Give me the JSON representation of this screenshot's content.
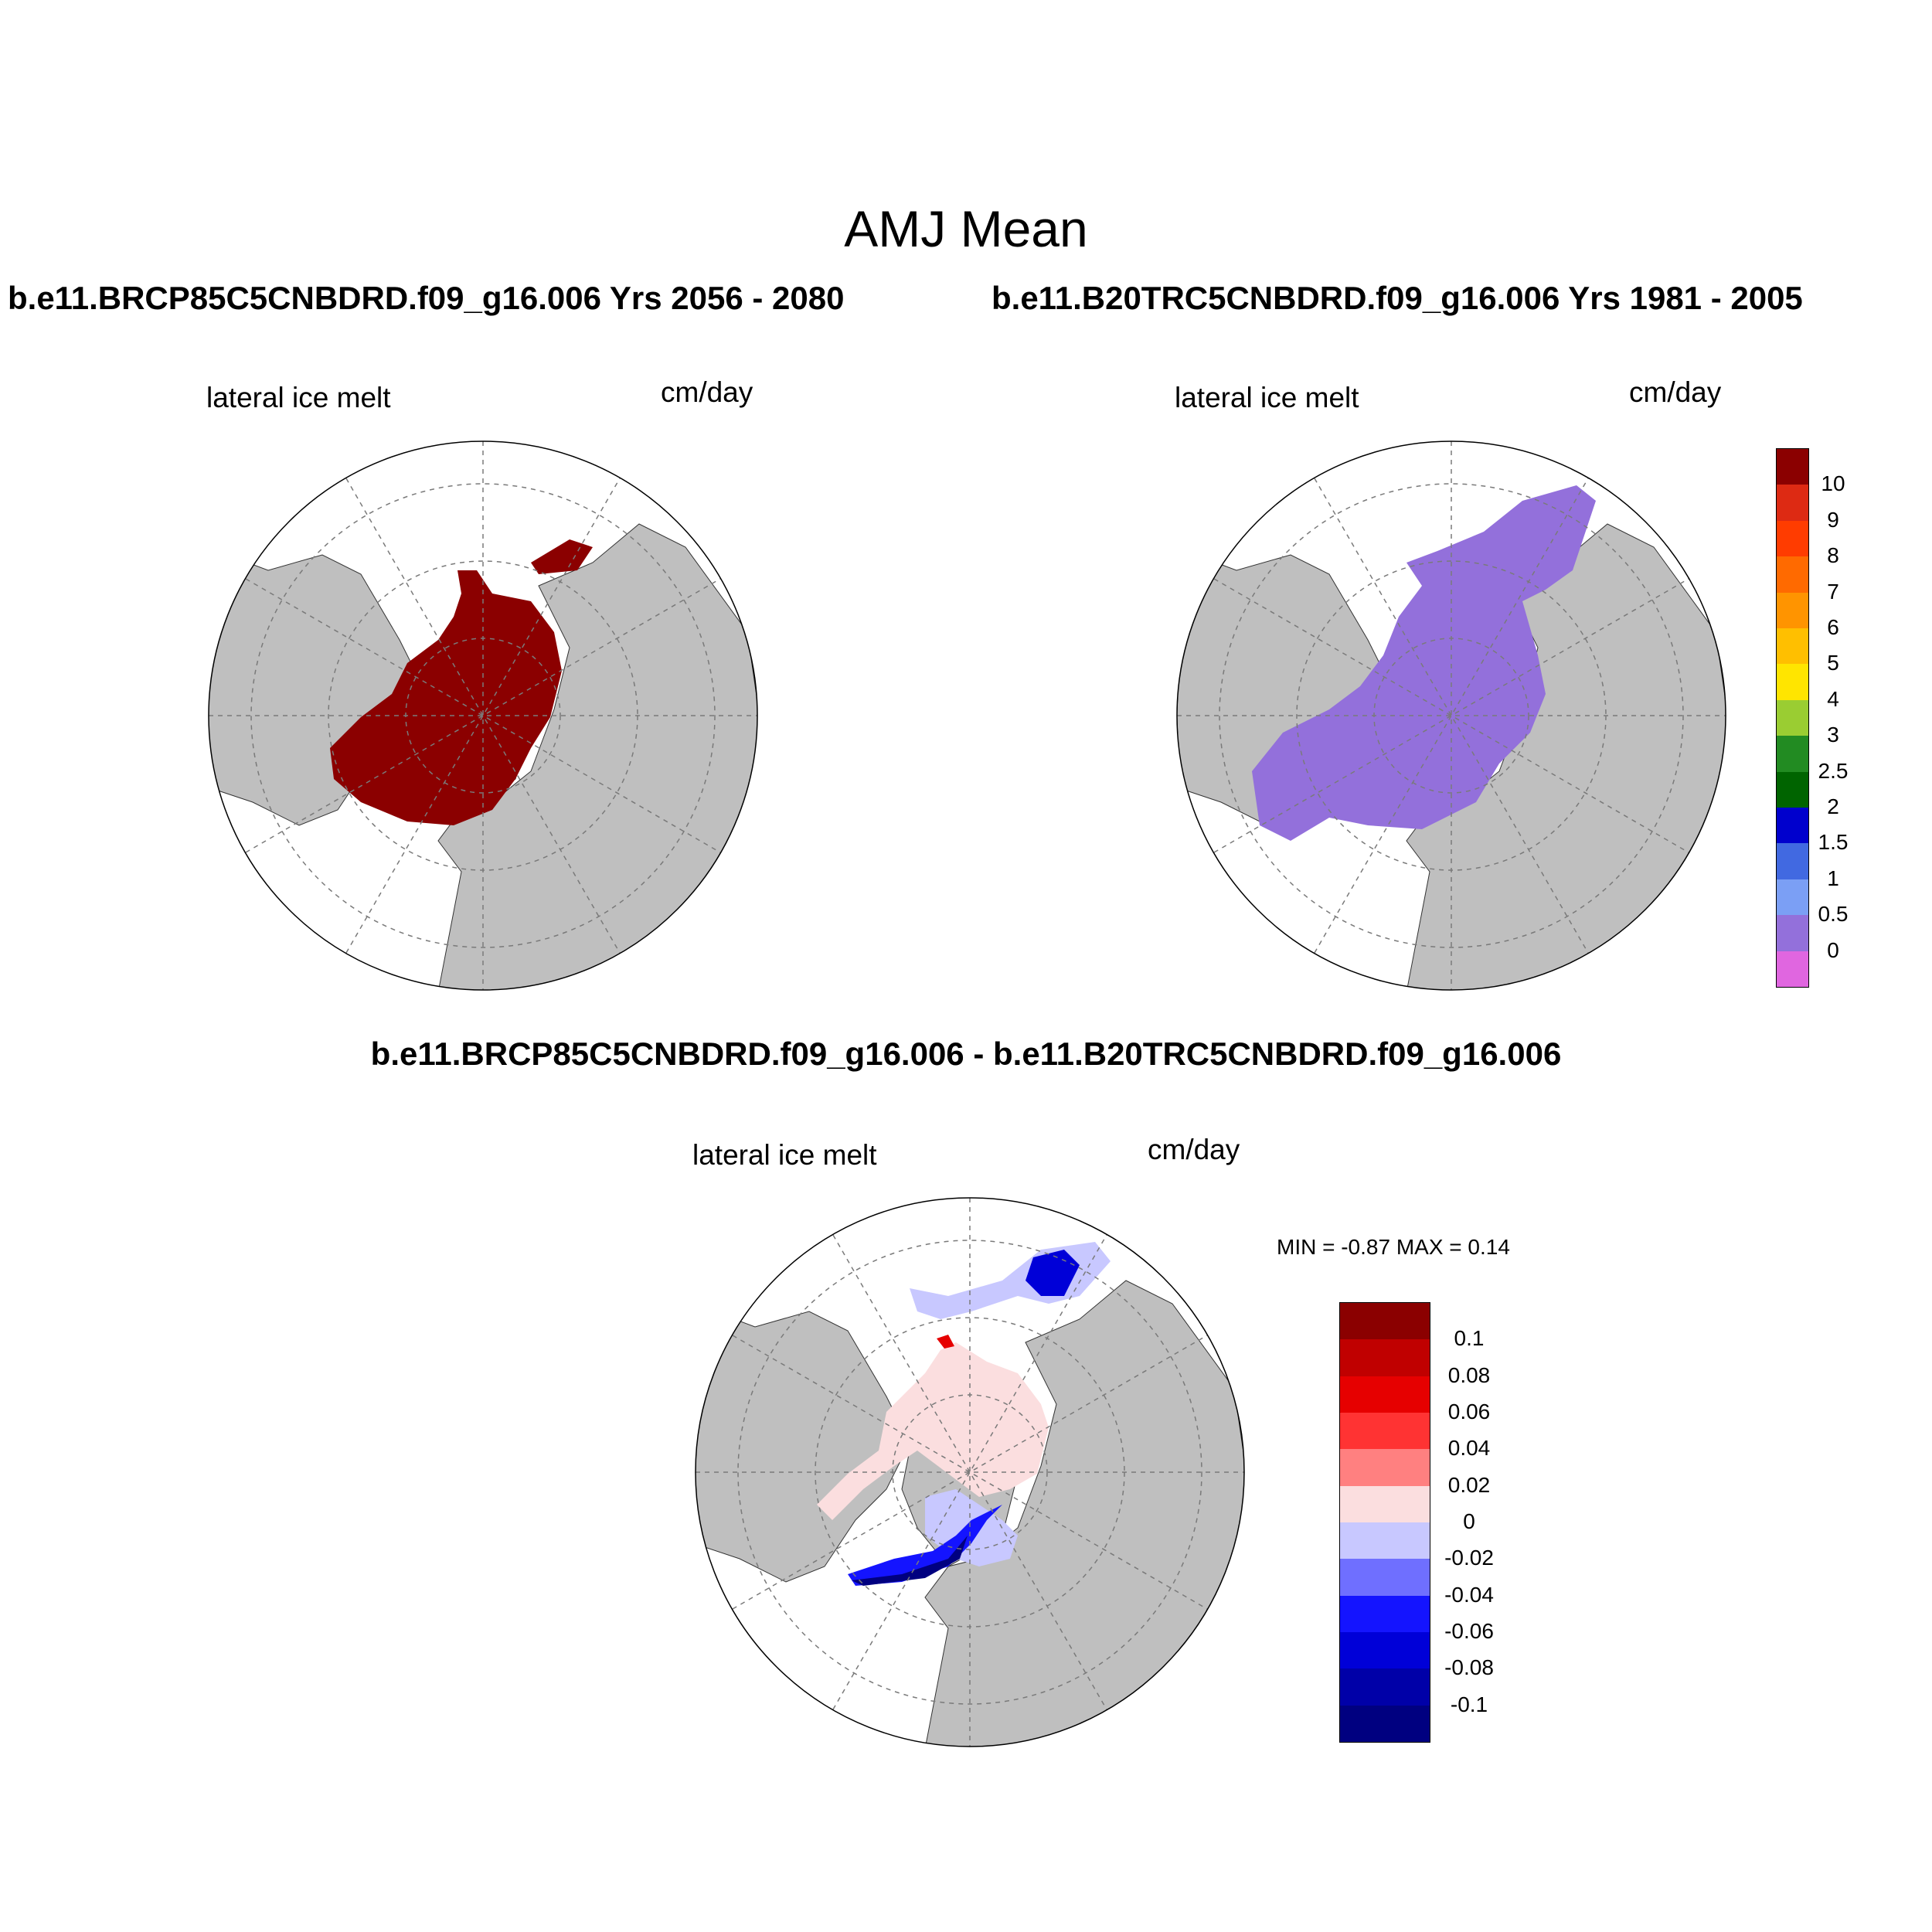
{
  "figure": {
    "title": "AMJ Mean",
    "left_subtitle": "b.e11.BRCP85C5CNBDRD.f09_g16.006  Yrs 2056 - 2080",
    "right_subtitle": "b.e11.B20TRC5CNBDRD.f09_g16.006  Yrs 1981 - 2005",
    "diff_title": "b.e11.BRCP85C5CNBDRD.f09_g16.006 - b.e11.B20TRC5CNBDRD.f09_g16.006"
  },
  "panels": {
    "left": {
      "variable": "lateral ice melt",
      "units": "cm/day",
      "fill_color": "#8b0000"
    },
    "right": {
      "variable": "lateral ice melt",
      "units": "cm/day",
      "fill_color": "#9370db"
    },
    "diff": {
      "variable": "lateral ice melt",
      "units": "cm/day",
      "min_max": "MIN =  -0.87 MAX =   0.14"
    }
  },
  "colorbars": {
    "mean": {
      "labels": [
        "10",
        "9",
        "8",
        "7",
        "6",
        "5",
        "4",
        "3",
        "2.5",
        "2",
        "1.5",
        "1",
        "0.5",
        "0"
      ],
      "colors": [
        "#8b0000",
        "#dd2a13",
        "#ff3c00",
        "#ff6a00",
        "#ff9400",
        "#ffbf00",
        "#ffe500",
        "#9acd32",
        "#228b22",
        "#006400",
        "#0000cd",
        "#4169e1",
        "#7b9ff5",
        "#9370db",
        "#e066e0"
      ]
    },
    "diff": {
      "labels": [
        "0.1",
        "0.08",
        "0.06",
        "0.04",
        "0.02",
        "0",
        "-0.02",
        "-0.04",
        "-0.06",
        "-0.08",
        "-0.1"
      ],
      "colors": [
        "#8b0000",
        "#c00000",
        "#e60000",
        "#ff3333",
        "#ff8080",
        "#fbdedf",
        "#c8c8ff",
        "#6f6fff",
        "#1414ff",
        "#0000d8",
        "#0000a8",
        "#000080"
      ]
    }
  },
  "colors": {
    "land": "#bfbfbf",
    "ocean": "#ffffff",
    "grid": "#7a7a7a"
  }
}
